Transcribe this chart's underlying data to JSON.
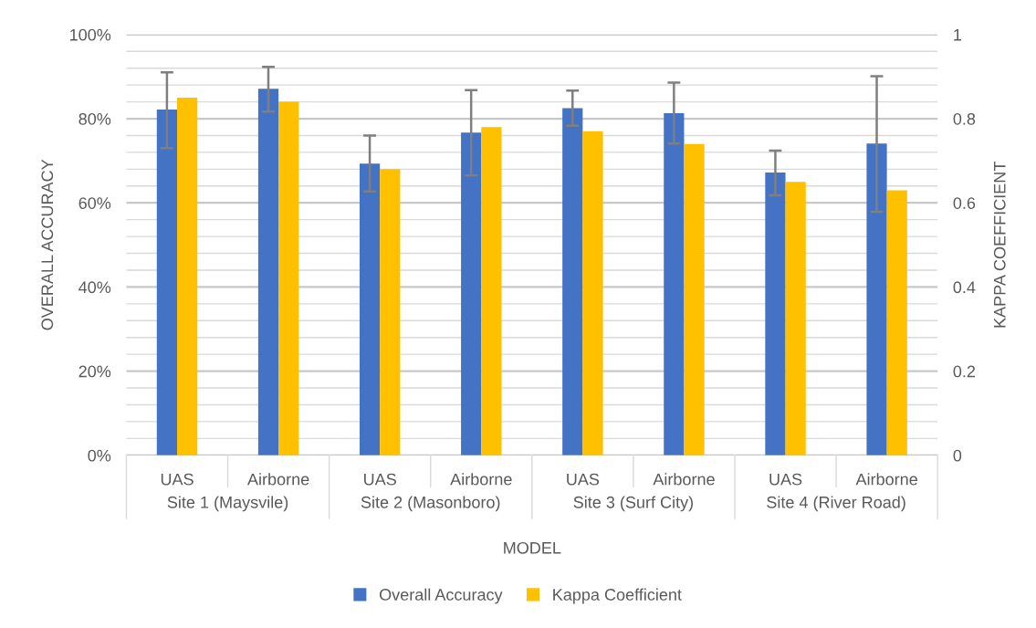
{
  "chart_data": {
    "type": "bar",
    "categories": [
      "UAS",
      "Airborne",
      "UAS",
      "Airborne",
      "UAS",
      "Airborne",
      "UAS",
      "Airborne"
    ],
    "xlabel": "MODEL",
    "ylabel": "OVERALL ACCURACY",
    "y2label": "KAPPA COEFFICIENT",
    "series": [
      {
        "name": "Overall Accuracy",
        "color": "#4472c4",
        "values": [
          82.2,
          87.1,
          69.3,
          76.7,
          82.5,
          81.3,
          67.2,
          74.1
        ],
        "errors": [
          [
            73.0,
            91.0
          ],
          [
            81.7,
            92.3
          ],
          [
            62.7,
            76.0
          ],
          [
            66.5,
            86.8
          ],
          [
            78.3,
            86.7
          ],
          [
            74.1,
            88.6
          ],
          [
            61.8,
            72.4
          ],
          [
            57.9,
            90.1
          ]
        ]
      },
      {
        "name": "Kappa Coefficient",
        "color": "#ffc000",
        "axis": "y2",
        "values": [
          0.85,
          0.84,
          0.68,
          0.78,
          0.77,
          0.74,
          0.65,
          0.63
        ]
      }
    ],
    "ylim": [
      0,
      100
    ],
    "yticks": [
      {
        "value": 0,
        "label": "0%"
      },
      {
        "value": 4,
        "label": null
      },
      {
        "value": 8,
        "label": null
      },
      {
        "value": 12,
        "label": null
      },
      {
        "value": 16,
        "label": null
      },
      {
        "value": 20,
        "label": "20%"
      },
      {
        "value": 24,
        "label": null
      },
      {
        "value": 28,
        "label": null
      },
      {
        "value": 32,
        "label": null
      },
      {
        "value": 36,
        "label": null
      },
      {
        "value": 40,
        "label": "40%"
      },
      {
        "value": 44,
        "label": null
      },
      {
        "value": 48,
        "label": null
      },
      {
        "value": 52,
        "label": null
      },
      {
        "value": 56,
        "label": null
      },
      {
        "value": 60,
        "label": "60%"
      },
      {
        "value": 64,
        "label": null
      },
      {
        "value": 68,
        "label": null
      },
      {
        "value": 72,
        "label": null
      },
      {
        "value": 76,
        "label": null
      },
      {
        "value": 80,
        "label": "80%"
      },
      {
        "value": 84,
        "label": null
      },
      {
        "value": 88,
        "label": null
      },
      {
        "value": 92,
        "label": null
      },
      {
        "value": 96,
        "label": null
      },
      {
        "value": 100,
        "label": "100%"
      }
    ],
    "y2lim": [
      0,
      1
    ],
    "y2ticks": [
      0,
      0.2,
      0.4,
      0.6,
      0.8,
      1
    ],
    "annotations": [
      "Site 1 (Maysvile)",
      "Site 2 (Masonboro)",
      "Site 3 (Surf City)",
      "Site 4 (River Road)"
    ],
    "grid": "y",
    "legend": "bottom"
  }
}
